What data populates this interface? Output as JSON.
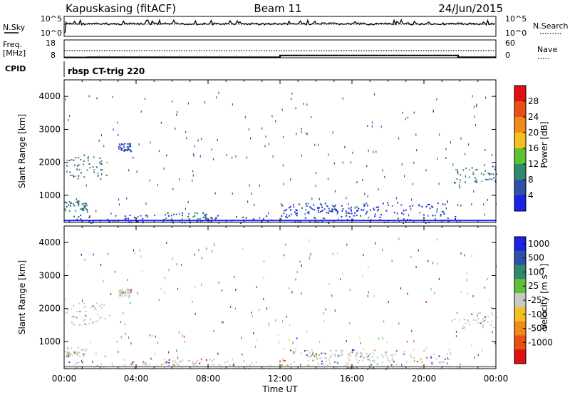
{
  "header": {
    "station": "Kapuskasing (fitACF)",
    "beam": "Beam 11",
    "date": "24/Jun/2015"
  },
  "cpid_text": "rbsp CT-trig 220",
  "left_labels": {
    "nsky": "N.Sky",
    "freq": "Freq.",
    "mhz": "[MHz]",
    "cpid": "CPID"
  },
  "right_labels": {
    "nsearch": "N.Search",
    "nave": "Nave"
  },
  "chart_data": [
    {
      "type": "line",
      "panel": "noise",
      "series": [
        {
          "name": "N.Sky"
        },
        {
          "name": "N.Search"
        }
      ],
      "y_ticks_left": [
        "10^5",
        "10^0"
      ],
      "y_ticks_right": [
        "10^5",
        "10^0"
      ]
    },
    {
      "type": "line",
      "panel": "frequency",
      "series": [
        {
          "name": "Freq.",
          "x": [
            0,
            1.3,
            12.0,
            21.9,
            24.0
          ],
          "values": [
            8.2,
            8.3,
            9.3,
            8.3,
            8.3
          ]
        },
        {
          "name": "Nave",
          "x": [
            0,
            24
          ],
          "values": [
            24,
            24
          ]
        }
      ],
      "y_ticks_left": [
        "18",
        "8"
      ],
      "y_ticks_right": [
        "60",
        "0"
      ]
    },
    {
      "type": "heatmap",
      "panel": "power",
      "ylabel": "Slant Range [km]",
      "ylim": [
        180,
        4500
      ],
      "y_ticks": [
        "1000",
        "2000",
        "3000",
        "4000"
      ],
      "colorbar": {
        "label": "Power [dB]",
        "ticks": [
          "4",
          "8",
          "12",
          "16",
          "20",
          "24",
          "28"
        ],
        "colors": [
          "#1a22e6",
          "#2c52a8",
          "#2e8a6a",
          "#5cc234",
          "#f2c020",
          "#f08a18",
          "#ea4e14",
          "#e01010"
        ]
      },
      "blobs": [
        {
          "t0": 0.05,
          "t1": 2.5,
          "r0": 1500,
          "r1": 2200,
          "level": 2
        },
        {
          "t0": 3.0,
          "t1": 3.7,
          "r0": 2350,
          "r1": 2600,
          "level": 1
        },
        {
          "t0": 0.0,
          "t1": 1.3,
          "r0": 550,
          "r1": 850,
          "level": 2
        },
        {
          "t0": 0.1,
          "t1": 22.0,
          "r0": 180,
          "r1": 420,
          "level": 1
        },
        {
          "t0": 5.5,
          "t1": 8.5,
          "r0": 250,
          "r1": 500,
          "level": 2
        },
        {
          "t0": 12.0,
          "t1": 21.5,
          "r0": 400,
          "r1": 800,
          "level": 1
        },
        {
          "t0": 13.5,
          "t1": 17.5,
          "r0": 450,
          "r1": 700,
          "level": 1
        },
        {
          "t0": 21.7,
          "t1": 24.0,
          "r0": 1400,
          "r1": 1900,
          "level": 2
        }
      ]
    },
    {
      "type": "heatmap",
      "panel": "velocity",
      "ylabel": "Slant Range [km]",
      "ylim": [
        180,
        4500
      ],
      "y_ticks": [
        "1000",
        "2000",
        "3000",
        "4000"
      ],
      "colorbar": {
        "label": "Velocity [m s⁻¹]",
        "ticks": [
          "1000",
          "500",
          "100",
          "25",
          "-25",
          "-100",
          "-500",
          "-1000"
        ],
        "colors": [
          "#1a22e6",
          "#2c52a8",
          "#2e8a6a",
          "#5cc234",
          "#c8c8c8",
          "#f2c020",
          "#f08a18",
          "#ea4e14",
          "#e01010"
        ]
      },
      "x_ticks": [
        "00:00",
        "04:00",
        "08:00",
        "12:00",
        "16:00",
        "20:00",
        "00:00"
      ],
      "xlabel": "Time UT",
      "xlim": [
        0,
        24
      ]
    }
  ]
}
